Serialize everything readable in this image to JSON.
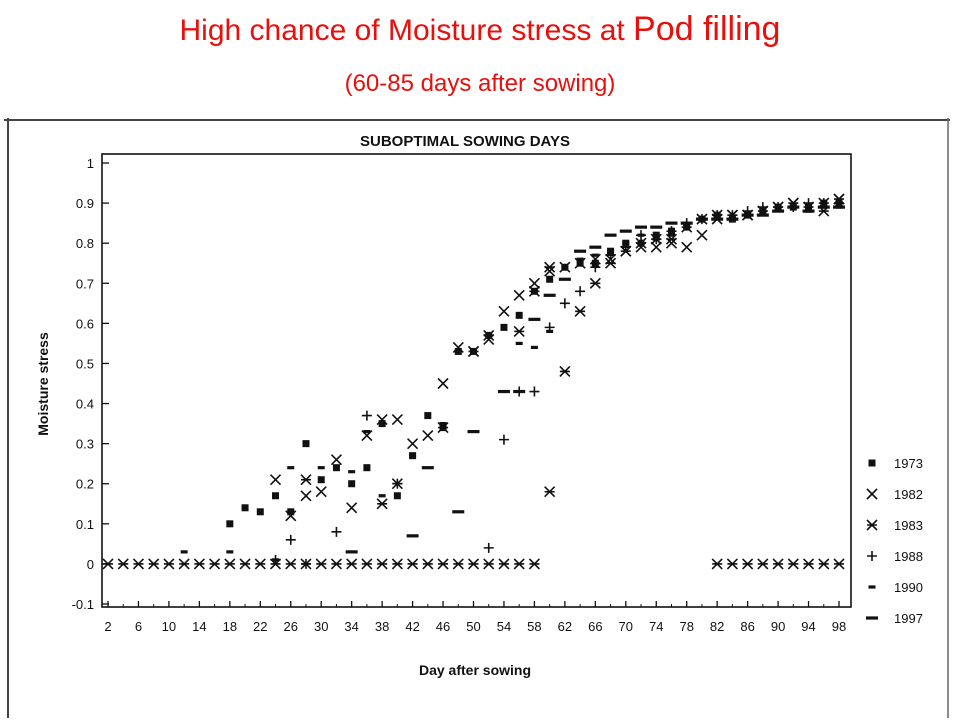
{
  "slide": {
    "title_part1": "High chance of Moisture stress at ",
    "title_part2": "Pod filling",
    "subtitle": "(60-85 days after sowing)",
    "colors": {
      "title": "#e8100c",
      "marks": "#111111"
    }
  },
  "chart_data": {
    "type": "scatter",
    "title": "SUBOPTIMAL SOWING DAYS",
    "xlabel": "Day after sowing",
    "ylabel": "Moisture stress",
    "xlim": [
      0,
      99
    ],
    "ylim": [
      -0.1,
      1.0
    ],
    "x_ticks": [
      2,
      6,
      10,
      14,
      18,
      22,
      26,
      30,
      34,
      38,
      42,
      46,
      50,
      54,
      58,
      62,
      66,
      70,
      74,
      78,
      82,
      86,
      90,
      94,
      98
    ],
    "y_ticks": [
      -0.1,
      0,
      0.1,
      0.2,
      0.3,
      0.4,
      0.5,
      0.6,
      0.7,
      0.8,
      0.9,
      1
    ],
    "y_tick_labels": [
      "-0.1",
      "0",
      "0.1",
      "0.2",
      "0.3",
      "0.4",
      "0.5",
      "0.6",
      "0.7",
      "0.8",
      "0.9",
      "1"
    ],
    "grid": false,
    "legend_position": "right",
    "series": [
      {
        "name": "1973",
        "marker": "square",
        "x": [
          18,
          20,
          22,
          24,
          26,
          28,
          30,
          32,
          34,
          36,
          38,
          40,
          42,
          44,
          46,
          48,
          50,
          52,
          54,
          56,
          58,
          60,
          62,
          64,
          66,
          68,
          70,
          72,
          74,
          76,
          78,
          80,
          82,
          84,
          86,
          88,
          90,
          92,
          94,
          96,
          98
        ],
        "y": [
          0.1,
          0.14,
          0.13,
          0.17,
          0.13,
          0.3,
          0.21,
          0.24,
          0.2,
          0.24,
          0.35,
          0.17,
          0.27,
          0.37,
          0.34,
          0.53,
          0.53,
          0.57,
          0.59,
          0.62,
          0.68,
          0.71,
          0.74,
          0.75,
          0.75,
          0.78,
          0.8,
          0.8,
          0.82,
          0.83,
          0.84,
          0.86,
          0.87,
          0.86,
          0.87,
          0.88,
          0.89,
          0.89,
          0.89,
          0.9,
          0.9
        ]
      },
      {
        "name": "1982",
        "marker": "x",
        "x": [
          24,
          26,
          28,
          30,
          32,
          34,
          36,
          38,
          40,
          42,
          44,
          46,
          48,
          50,
          52,
          54,
          56,
          58,
          60,
          62,
          64,
          66,
          68,
          70,
          72,
          74,
          76,
          78,
          80,
          82,
          84,
          86,
          88,
          90,
          92,
          94,
          96,
          98
        ],
        "y": [
          0.21,
          0.12,
          0.17,
          0.18,
          0.26,
          0.14,
          0.32,
          0.36,
          0.36,
          0.3,
          0.32,
          0.45,
          0.54,
          0.53,
          0.56,
          0.63,
          0.67,
          0.7,
          0.73,
          0.74,
          0.75,
          0.76,
          0.76,
          0.78,
          0.79,
          0.79,
          0.8,
          0.79,
          0.82,
          0.86,
          0.87,
          0.87,
          0.88,
          0.89,
          0.9,
          0.89,
          0.9,
          0.91
        ]
      },
      {
        "name": "1983",
        "marker": "asterisk",
        "x": [
          2,
          4,
          6,
          8,
          10,
          12,
          14,
          16,
          18,
          20,
          22,
          24,
          26,
          28,
          30,
          32,
          34,
          36,
          38,
          40,
          42,
          44,
          46,
          48,
          50,
          52,
          54,
          56,
          58,
          28,
          38,
          40,
          46,
          50,
          52,
          56,
          58,
          60,
          64,
          66,
          68,
          70,
          72,
          74,
          76,
          78,
          80,
          82,
          84,
          86,
          88,
          90,
          92,
          94,
          96,
          98,
          62,
          60,
          82,
          84,
          86,
          88,
          90,
          92,
          94,
          96,
          98
        ],
        "y": [
          0,
          0,
          0,
          0,
          0,
          0,
          0,
          0,
          0,
          0,
          0,
          0,
          0,
          0,
          0,
          0,
          0,
          0,
          0,
          0,
          0,
          0,
          0,
          0,
          0,
          0,
          0,
          0,
          0,
          0.21,
          0.15,
          0.2,
          0.34,
          0.53,
          0.57,
          0.58,
          0.68,
          0.74,
          0.63,
          0.7,
          0.75,
          0.78,
          0.8,
          0.81,
          0.81,
          0.84,
          0.86,
          0.87,
          0.87,
          0.87,
          0.88,
          0.89,
          0.9,
          0.89,
          0.88,
          0.91,
          0.48,
          0.18,
          0,
          0,
          0,
          0,
          0,
          0,
          0,
          0,
          0
        ]
      },
      {
        "name": "1988",
        "marker": "plus",
        "x": [
          24,
          26,
          28,
          32,
          36,
          40,
          52,
          54,
          56,
          58,
          60,
          62,
          64,
          66,
          68,
          70,
          72,
          74,
          76,
          78,
          80,
          82,
          84,
          86,
          88,
          90,
          92,
          94,
          96,
          98
        ],
        "y": [
          0.01,
          0.06,
          0,
          0.08,
          0.37,
          0.2,
          0.04,
          0.31,
          0.43,
          0.43,
          0.59,
          0.65,
          0.68,
          0.74,
          0.77,
          0.79,
          0.82,
          0.81,
          0.83,
          0.85,
          0.86,
          0.87,
          0.87,
          0.88,
          0.89,
          0.89,
          0.89,
          0.9,
          0.9,
          0.9
        ]
      },
      {
        "name": "1990",
        "marker": "dash",
        "x": [
          12,
          18,
          24,
          26,
          30,
          34,
          36,
          38,
          42,
          46,
          56,
          58,
          60,
          62,
          64,
          66,
          68,
          70,
          72,
          74,
          76,
          78,
          80,
          82,
          84,
          86,
          88,
          90,
          92,
          94,
          96,
          98
        ],
        "y": [
          0.03,
          0.03,
          0.01,
          0.24,
          0.24,
          0.23,
          0.33,
          0.17,
          0.27,
          0.35,
          0.55,
          0.54,
          0.58,
          0.74,
          0.76,
          0.77,
          0.78,
          0.8,
          0.82,
          0.81,
          0.82,
          0.84,
          0.86,
          0.87,
          0.86,
          0.87,
          0.88,
          0.89,
          0.89,
          0.88,
          0.89,
          0.89
        ]
      },
      {
        "name": "1997",
        "marker": "bar",
        "x": [
          34,
          42,
          44,
          48,
          50,
          54,
          56,
          58,
          60,
          62,
          64,
          66,
          68,
          70,
          72,
          74,
          76,
          78,
          80,
          82,
          84,
          86,
          88,
          90,
          92,
          94,
          96,
          98
        ],
        "y": [
          0.03,
          0.07,
          0.24,
          0.13,
          0.33,
          0.43,
          0.43,
          0.61,
          0.67,
          0.71,
          0.78,
          0.79,
          0.82,
          0.83,
          0.84,
          0.84,
          0.85,
          0.85,
          0.86,
          0.86,
          0.86,
          0.87,
          0.87,
          0.88,
          0.89,
          0.88,
          0.89,
          0.89
        ]
      }
    ]
  }
}
